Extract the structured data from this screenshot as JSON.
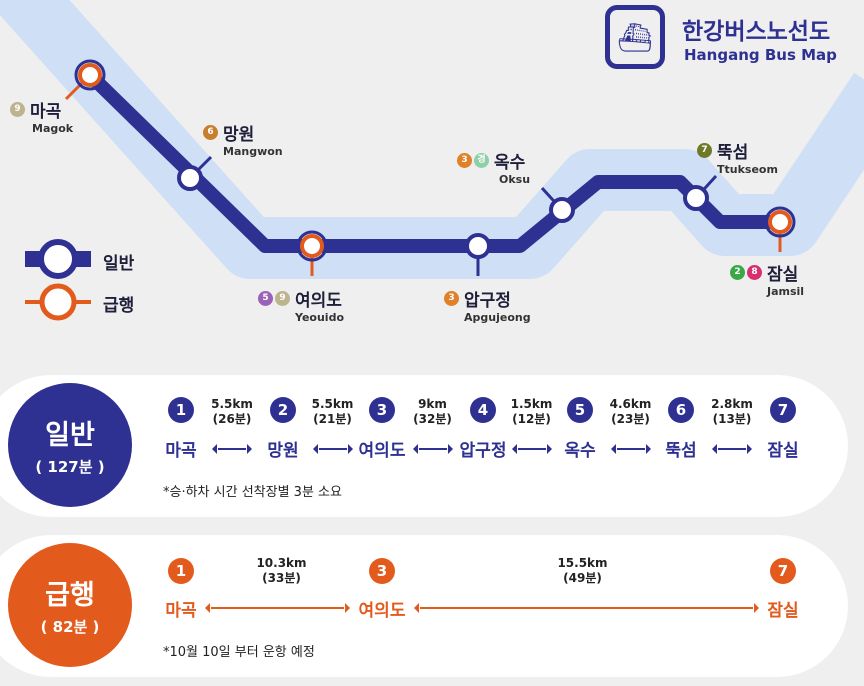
{
  "colors": {
    "regular": "#2e3192",
    "express": "#e35a1d",
    "river": "#cfe0f6"
  },
  "header": {
    "title_ko": "한강버스노선도",
    "title_en": "Hangang Bus Map",
    "logo_icon": "ferry-icon"
  },
  "legend": {
    "regular": "일반",
    "express": "급행"
  },
  "stations": [
    {
      "ko": "마곡",
      "en": "Magok",
      "lines": [
        {
          "n": "9",
          "c": "#bdb38f"
        }
      ]
    },
    {
      "ko": "망원",
      "en": "Mangwon",
      "lines": [
        {
          "n": "6",
          "c": "#c77f2d"
        }
      ]
    },
    {
      "ko": "여의도",
      "en": "Yeouido",
      "lines": [
        {
          "n": "5",
          "c": "#9b63b5"
        },
        {
          "n": "9",
          "c": "#bdb38f"
        }
      ]
    },
    {
      "ko": "압구정",
      "en": "Apgujeong",
      "lines": [
        {
          "n": "3",
          "c": "#e0812a"
        }
      ]
    },
    {
      "ko": "옥수",
      "en": "Oksu",
      "lines": [
        {
          "n": "3",
          "c": "#e0812a"
        },
        {
          "n": "경",
          "c": "#8fcfa8"
        }
      ]
    },
    {
      "ko": "뚝섬",
      "en": "Ttukseom",
      "lines": [
        {
          "n": "7",
          "c": "#6e7a2a"
        }
      ]
    },
    {
      "ko": "잠실",
      "en": "Jamsil",
      "lines": [
        {
          "n": "2",
          "c": "#3aa846"
        },
        {
          "n": "8",
          "c": "#d6306e"
        }
      ]
    }
  ],
  "regular": {
    "title": "일반",
    "total": "( 127분 )",
    "numbers": [
      "1",
      "2",
      "3",
      "4",
      "5",
      "6",
      "7"
    ],
    "names": [
      "마곡",
      "망원",
      "여의도",
      "압구정",
      "옥수",
      "뚝섬",
      "잠실"
    ],
    "segments": [
      {
        "km": "5.5km",
        "min": "(26분)"
      },
      {
        "km": "5.5km",
        "min": "(21분)"
      },
      {
        "km": "9km",
        "min": "(32분)"
      },
      {
        "km": "1.5km",
        "min": "(12분)"
      },
      {
        "km": "4.6km",
        "min": "(23분)"
      },
      {
        "km": "2.8km",
        "min": "(13분)"
      }
    ],
    "note": "*승·하차 시간 선착장별 3분 소요"
  },
  "express": {
    "title": "급행",
    "total": "( 82분 )",
    "numbers": [
      "1",
      "3",
      "7"
    ],
    "names": [
      "마곡",
      "여의도",
      "잠실"
    ],
    "segments": [
      {
        "km": "10.3km",
        "min": "(33분)"
      },
      {
        "km": "15.5km",
        "min": "(49분)"
      }
    ],
    "note": "*10월 10일 부터 운항 예정"
  }
}
